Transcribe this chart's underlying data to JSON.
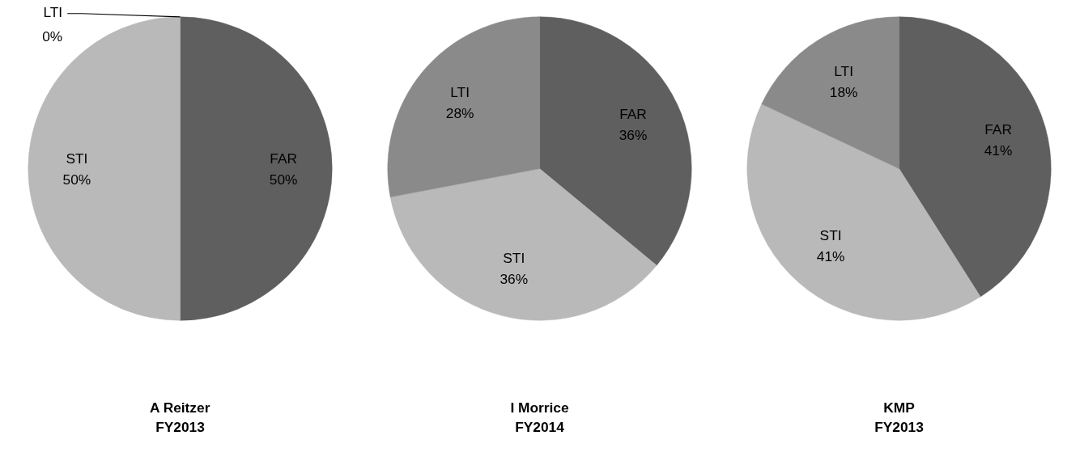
{
  "chart_data": [
    {
      "type": "pie",
      "title": "A Reitzer\nFY2013",
      "categories": [
        "FAR",
        "STI",
        "LTI"
      ],
      "values": [
        50,
        50,
        0
      ],
      "colors": [
        "#5f5f5f",
        "#b9b9b9",
        "#8a8a8a"
      ],
      "value_labels": [
        "50%",
        "50%",
        "0%"
      ]
    },
    {
      "type": "pie",
      "title": "I Morrice\nFY2014",
      "categories": [
        "FAR",
        "STI",
        "LTI"
      ],
      "values": [
        36,
        36,
        28
      ],
      "colors": [
        "#5f5f5f",
        "#b9b9b9",
        "#8a8a8a"
      ],
      "value_labels": [
        "36%",
        "36%",
        "28%"
      ]
    },
    {
      "type": "pie",
      "title": "KMP\nFY2013",
      "categories": [
        "FAR",
        "STI",
        "LTI"
      ],
      "values": [
        41,
        41,
        18
      ],
      "colors": [
        "#5f5f5f",
        "#b9b9b9",
        "#8a8a8a"
      ],
      "value_labels": [
        "41%",
        "41%",
        "18%"
      ]
    }
  ]
}
